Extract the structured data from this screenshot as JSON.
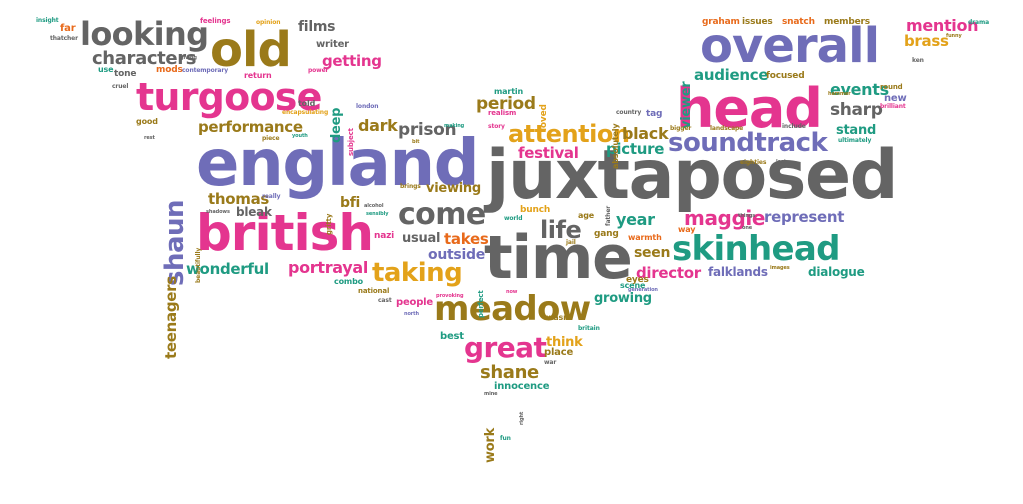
{
  "palette": {
    "pink": "#e4358f",
    "gray": "#646464",
    "purple": "#6f6db8",
    "olive": "#9a7a1a",
    "gold": "#e3a21a",
    "teal": "#1f9b82",
    "orange": "#e86a1b",
    "dark": "#4a4a4a"
  },
  "words": [
    {
      "id": "juxtaposed",
      "text": "juxtaposed",
      "color": "gray",
      "rot": 0
    },
    {
      "id": "england",
      "text": "england",
      "color": "purple",
      "rot": 0
    },
    {
      "id": "time",
      "text": "time",
      "color": "gray",
      "rot": 0
    },
    {
      "id": "head",
      "text": "head",
      "color": "pink",
      "rot": 0
    },
    {
      "id": "overall",
      "text": "overall",
      "color": "purple",
      "rot": 0
    },
    {
      "id": "british",
      "text": "british",
      "color": "pink",
      "rot": 0
    },
    {
      "id": "old",
      "text": "old",
      "color": "olive",
      "rot": 0
    },
    {
      "id": "turgoose",
      "text": "turgoose",
      "color": "pink",
      "rot": 0
    },
    {
      "id": "looking",
      "text": "looking",
      "color": "gray",
      "rot": 0
    },
    {
      "id": "meadow",
      "text": "meadow",
      "color": "olive",
      "rot": 0
    },
    {
      "id": "skinhead",
      "text": "skinhead",
      "color": "teal",
      "rot": 0
    },
    {
      "id": "soundtrack",
      "text": "soundtrack",
      "color": "purple",
      "rot": 0
    },
    {
      "id": "great",
      "text": "great",
      "color": "pink",
      "rot": 0
    },
    {
      "id": "come",
      "text": "come",
      "color": "gray",
      "rot": 0
    },
    {
      "id": "attention",
      "text": "attention",
      "color": "gold",
      "rot": 0
    },
    {
      "id": "taking",
      "text": "taking",
      "color": "gold",
      "rot": 0
    },
    {
      "id": "shaun",
      "text": "shaun",
      "color": "purple",
      "rot": -90
    },
    {
      "id": "life",
      "text": "life",
      "color": "gray",
      "rot": 0
    },
    {
      "id": "characters",
      "text": "characters",
      "color": "gray",
      "rot": 0
    },
    {
      "id": "shane",
      "text": "shane",
      "color": "olive",
      "rot": 0
    },
    {
      "id": "performance",
      "text": "performance",
      "color": "olive",
      "rot": 0
    },
    {
      "id": "prison",
      "text": "prison",
      "color": "gray",
      "rot": 0
    },
    {
      "id": "portrayal",
      "text": "portrayal",
      "color": "pink",
      "rot": 0
    },
    {
      "id": "wonderful",
      "text": "wonderful",
      "color": "teal",
      "rot": 0
    },
    {
      "id": "teenagers",
      "text": "teenagers",
      "color": "olive",
      "rot": -90
    },
    {
      "id": "maggie",
      "text": "maggie",
      "color": "pink",
      "rot": 0
    },
    {
      "id": "represent",
      "text": "represent",
      "color": "purple",
      "rot": 0
    },
    {
      "id": "director",
      "text": "director",
      "color": "pink",
      "rot": 0
    },
    {
      "id": "sharp",
      "text": "sharp",
      "color": "gray",
      "rot": 0
    },
    {
      "id": "events",
      "text": "events",
      "color": "teal",
      "rot": 0
    },
    {
      "id": "audience",
      "text": "audience",
      "color": "teal",
      "rot": 0
    },
    {
      "id": "mention",
      "text": "mention",
      "color": "pink",
      "rot": 0
    },
    {
      "id": "brass",
      "text": "brass",
      "color": "gold",
      "rot": 0
    },
    {
      "id": "period",
      "text": "period",
      "color": "olive",
      "rot": 0
    },
    {
      "id": "dark",
      "text": "dark",
      "color": "olive",
      "rot": 0
    },
    {
      "id": "black",
      "text": "black",
      "color": "olive",
      "rot": 0
    },
    {
      "id": "picture",
      "text": "picture",
      "color": "teal",
      "rot": 0
    },
    {
      "id": "festival",
      "text": "festival",
      "color": "pink",
      "rot": 0
    },
    {
      "id": "thomas",
      "text": "thomas",
      "color": "olive",
      "rot": 0
    },
    {
      "id": "bleak",
      "text": "bleak",
      "color": "gray",
      "rot": 0
    },
    {
      "id": "takes",
      "text": "takes",
      "color": "orange",
      "rot": 0
    },
    {
      "id": "outside",
      "text": "outside",
      "color": "purple",
      "rot": 0
    },
    {
      "id": "usual",
      "text": "usual",
      "color": "gray",
      "rot": 0
    },
    {
      "id": "viewing",
      "text": "viewing",
      "color": "olive",
      "rot": 0
    },
    {
      "id": "year",
      "text": "year",
      "color": "teal",
      "rot": 0
    },
    {
      "id": "seen",
      "text": "seen",
      "color": "olive",
      "rot": 0
    },
    {
      "id": "growing",
      "text": "growing",
      "color": "teal",
      "rot": 0
    },
    {
      "id": "falklands",
      "text": "falklands",
      "color": "purple",
      "rot": 0
    },
    {
      "id": "dialogue",
      "text": "dialogue",
      "color": "teal",
      "rot": 0
    },
    {
      "id": "stand",
      "text": "stand",
      "color": "teal",
      "rot": 0
    },
    {
      "id": "getting",
      "text": "getting",
      "color": "pink",
      "rot": 0
    },
    {
      "id": "films",
      "text": "films",
      "color": "gray",
      "rot": 0
    },
    {
      "id": "writer",
      "text": "writer",
      "color": "gray",
      "rot": 0
    },
    {
      "id": "deep",
      "text": "deep",
      "color": "teal",
      "rot": -90
    },
    {
      "id": "viewer",
      "text": "viewer",
      "color": "teal",
      "rot": -90
    },
    {
      "id": "work",
      "text": "work",
      "color": "olive",
      "rot": -90
    },
    {
      "id": "bfi",
      "text": "bfi",
      "color": "olive",
      "rot": 0
    },
    {
      "id": "people",
      "text": "people",
      "color": "pink",
      "rot": 0
    },
    {
      "id": "think",
      "text": "think",
      "color": "gold",
      "rot": 0
    },
    {
      "id": "place",
      "text": "place",
      "color": "olive",
      "rot": 0
    },
    {
      "id": "innocence",
      "text": "innocence",
      "color": "teal",
      "rot": 0
    },
    {
      "id": "best",
      "text": "best",
      "color": "teal",
      "rot": 0
    },
    {
      "id": "wasn",
      "text": "wasn",
      "color": "olive",
      "rot": 0
    },
    {
      "id": "martin",
      "text": "martin",
      "color": "teal",
      "rot": 0
    },
    {
      "id": "loved",
      "text": "loved",
      "color": "gold",
      "rot": -90
    },
    {
      "id": "graham",
      "text": "graham",
      "color": "orange",
      "rot": 0
    },
    {
      "id": "issues",
      "text": "issues",
      "color": "olive",
      "rot": 0
    },
    {
      "id": "snatch",
      "text": "snatch",
      "color": "orange",
      "rot": 0
    },
    {
      "id": "members",
      "text": "members",
      "color": "olive",
      "rot": 0
    },
    {
      "id": "focused",
      "text": "focused",
      "color": "olive",
      "rot": 0
    },
    {
      "id": "tone",
      "text": "tone",
      "color": "gray",
      "rot": 0
    },
    {
      "id": "mods",
      "text": "mods",
      "color": "orange",
      "rot": 0
    },
    {
      "id": "far",
      "text": "far",
      "color": "orange",
      "rot": 0
    },
    {
      "id": "feelings",
      "text": "feelings",
      "color": "pink",
      "rot": 0
    },
    {
      "id": "opinion",
      "text": "opinion",
      "color": "gold",
      "rot": 0
    },
    {
      "id": "return",
      "text": "return",
      "color": "pink",
      "rot": 0
    },
    {
      "id": "good",
      "text": "good",
      "color": "olive",
      "rot": 0
    },
    {
      "id": "told",
      "text": "told",
      "color": "gray",
      "rot": 0
    },
    {
      "id": "realism",
      "text": "realism",
      "color": "pink",
      "rot": 0
    },
    {
      "id": "absolutely",
      "text": "absolutely",
      "color": "olive",
      "rot": -90
    },
    {
      "id": "tag",
      "text": "tag",
      "color": "purple",
      "rot": 0
    },
    {
      "id": "country",
      "text": "country",
      "color": "gray",
      "rot": 0
    },
    {
      "id": "gang",
      "text": "gang",
      "color": "olive",
      "rot": 0
    },
    {
      "id": "eyes",
      "text": "eyes",
      "color": "olive",
      "rot": 0
    },
    {
      "id": "warmth",
      "text": "warmth",
      "color": "orange",
      "rot": 0
    },
    {
      "id": "bunch",
      "text": "bunch",
      "color": "gold",
      "rot": 0
    },
    {
      "id": "age",
      "text": "age",
      "color": "olive",
      "rot": 0
    },
    {
      "id": "national",
      "text": "national",
      "color": "olive",
      "rot": 0
    },
    {
      "id": "nazi",
      "text": "nazi",
      "color": "pink",
      "rot": 0
    },
    {
      "id": "combo",
      "text": "combo",
      "color": "teal",
      "rot": 0
    },
    {
      "id": "way",
      "text": "way",
      "color": "orange",
      "rot": 0
    },
    {
      "id": "new",
      "text": "new",
      "color": "purple",
      "rot": 0
    },
    {
      "id": "round",
      "text": "round",
      "color": "olive",
      "rot": 0
    },
    {
      "id": "use",
      "text": "use",
      "color": "teal",
      "rot": 0
    },
    {
      "id": "scene",
      "text": "scene",
      "color": "teal",
      "rot": 0
    },
    {
      "id": "britain",
      "text": "britain",
      "color": "teal",
      "rot": 0
    },
    {
      "id": "war",
      "text": "war",
      "color": "gray",
      "rot": 0
    },
    {
      "id": "fun",
      "text": "fun",
      "color": "teal",
      "rot": 0
    },
    {
      "id": "mine",
      "text": "mine",
      "color": "gray",
      "rot": 0
    },
    {
      "id": "eighties",
      "text": "eighties",
      "color": "olive",
      "rot": 0
    },
    {
      "id": "ultimately",
      "text": "ultimately",
      "color": "teal",
      "rot": 0
    },
    {
      "id": "brilliant",
      "text": "brilliant",
      "color": "pink",
      "rot": 0
    },
    {
      "id": "include",
      "text": "include",
      "color": "gray",
      "rot": 0
    },
    {
      "id": "bigger",
      "text": "bigger",
      "color": "olive",
      "rot": 0
    },
    {
      "id": "landscape",
      "text": "landscape",
      "color": "olive",
      "rot": 0
    },
    {
      "id": "images",
      "text": "images",
      "color": "olive",
      "rot": 0
    },
    {
      "id": "things",
      "text": "things",
      "color": "gray",
      "rot": 0
    },
    {
      "id": "one",
      "text": "one",
      "color": "gray",
      "rot": 0
    },
    {
      "id": "thatcher",
      "text": "thatcher",
      "color": "gray",
      "rot": 0
    },
    {
      "id": "insight",
      "text": "insight",
      "color": "teal",
      "rot": 0
    },
    {
      "id": "contemporary",
      "text": "contemporary",
      "color": "purple",
      "rot": 0
    },
    {
      "id": "giving",
      "text": "giving",
      "color": "gray",
      "rot": 0
    },
    {
      "id": "power",
      "text": "power",
      "color": "pink",
      "rot": 0
    },
    {
      "id": "cruel",
      "text": "cruel",
      "color": "gray",
      "rot": 0
    },
    {
      "id": "rest",
      "text": "rest",
      "color": "gray",
      "rot": 0
    },
    {
      "id": "piece",
      "text": "piece",
      "color": "olive",
      "rot": 0
    },
    {
      "id": "skin",
      "text": "skin",
      "color": "olive",
      "rot": 0
    },
    {
      "id": "youth",
      "text": "youth",
      "color": "teal",
      "rot": 0
    },
    {
      "id": "making",
      "text": "making",
      "color": "teal",
      "rot": 0
    },
    {
      "id": "story",
      "text": "story",
      "color": "pink",
      "rot": 0
    },
    {
      "id": "really",
      "text": "really",
      "color": "purple",
      "rot": 0
    },
    {
      "id": "gritty",
      "text": "gritty",
      "color": "olive",
      "rot": -90
    },
    {
      "id": "brings",
      "text": "brings",
      "color": "olive",
      "rot": 0
    },
    {
      "id": "world",
      "text": "world",
      "color": "teal",
      "rot": 0
    },
    {
      "id": "jail",
      "text": "jail",
      "color": "olive",
      "rot": 0
    },
    {
      "id": "father",
      "text": "father",
      "color": "gray",
      "rot": -90
    },
    {
      "id": "north",
      "text": "north",
      "color": "purple",
      "rot": 0
    },
    {
      "id": "cast",
      "text": "cast",
      "color": "gray",
      "rot": 0
    },
    {
      "id": "provoking",
      "text": "provoking",
      "color": "pink",
      "rot": 0
    },
    {
      "id": "perfect",
      "text": "perfect",
      "color": "teal",
      "rot": -90
    },
    {
      "id": "now",
      "text": "now",
      "color": "pink",
      "rot": 0
    },
    {
      "id": "london",
      "text": "london",
      "color": "purple",
      "rot": 0
    },
    {
      "id": "encapsulating",
      "text": "encapsulating",
      "color": "gold",
      "rot": 0
    },
    {
      "id": "bit",
      "text": "bit",
      "color": "olive",
      "rot": 0
    },
    {
      "id": "generation",
      "text": "generation",
      "color": "purple",
      "rot": 0
    },
    {
      "id": "drama",
      "text": "drama",
      "color": "teal",
      "rot": 0
    },
    {
      "id": "hammer",
      "text": "hammer",
      "color": "olive",
      "rot": 0
    },
    {
      "id": "ken",
      "text": "ken",
      "color": "gray",
      "rot": 0
    },
    {
      "id": "funny",
      "text": "funny",
      "color": "olive",
      "rot": 0
    },
    {
      "id": "beautifully",
      "text": "beautifully",
      "color": "olive",
      "rot": -90
    },
    {
      "id": "shadows",
      "text": "shadows",
      "color": "gray",
      "rot": 0
    },
    {
      "id": "group",
      "text": "group",
      "color": "olive",
      "rot": 0
    },
    {
      "id": "sensibly",
      "text": "sensibly",
      "color": "teal",
      "rot": 0
    },
    {
      "id": "alcohol",
      "text": "alcohol",
      "color": "gray",
      "rot": 0
    },
    {
      "id": "leader",
      "text": "leader",
      "color": "gray",
      "rot": 0
    },
    {
      "id": "lost",
      "text": "lost",
      "color": "gray",
      "rot": 0
    },
    {
      "id": "subject",
      "text": "subject",
      "color": "pink",
      "rot": -90
    },
    {
      "id": "right",
      "text": "right",
      "color": "gray",
      "rot": -90
    },
    {
      "id": "seaside",
      "text": "seaside",
      "color": "gray",
      "rot": -90
    }
  ]
}
